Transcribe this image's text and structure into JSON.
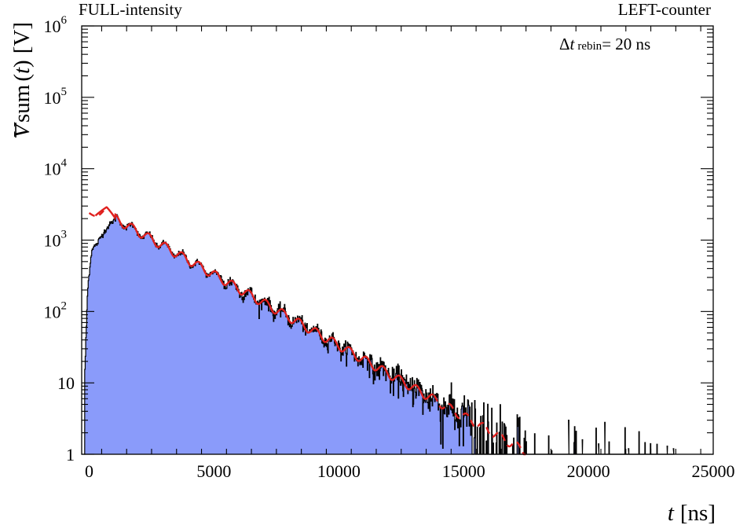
{
  "header": {
    "left_label": "FULL-intensity",
    "right_label": "LEFT-counter"
  },
  "annotation": {
    "prefix": "Δ",
    "var": "t",
    "sub": "rebin",
    "suffix": "= 20 ns"
  },
  "axes": {
    "x_title_var": "t",
    "x_title_unit": "[ns]",
    "y_title_var": "V",
    "y_title_mid": "sum",
    "y_title_paren_var": "t",
    "y_title_unit": "[V]"
  },
  "colors": {
    "fill": "#8a9bfa",
    "data_line": "#000000",
    "fit_line": "#e0201e",
    "frame": "#000000"
  },
  "chart_data": {
    "type": "area",
    "title": "",
    "xlabel": "t [ns]",
    "ylabel": "V̅sum (t) [V]",
    "xlim": [
      -300,
      25000
    ],
    "ylim": [
      1,
      1000000
    ],
    "yscale": "log",
    "grid": false,
    "legend": "none",
    "x_ticks": [
      0,
      5000,
      10000,
      15000,
      20000,
      25000
    ],
    "x_tick_labels": [
      "0",
      "5000",
      "10000",
      "15000",
      "20000",
      "25000"
    ],
    "y_ticks": [
      1,
      10,
      100,
      1000,
      10000,
      100000,
      1000000
    ],
    "y_tick_labels": [
      {
        "base": "1",
        "exp": ""
      },
      {
        "base": "10",
        "exp": ""
      },
      {
        "base": "10",
        "exp": "2"
      },
      {
        "base": "10",
        "exp": "3"
      },
      {
        "base": "10",
        "exp": "4"
      },
      {
        "base": "10",
        "exp": "5"
      },
      {
        "base": "10",
        "exp": "6"
      }
    ],
    "series": [
      {
        "role": "data histogram (filled, black outline)",
        "bin_width": 20,
        "decay_lifetime_ns": 2190,
        "peak": {
          "x": 1050,
          "y": 2000
        },
        "oscillation_period_ns": 670,
        "last_nonzero_x": 23400,
        "points": [
          [
            -200,
            1
          ],
          [
            -100,
            40
          ],
          [
            -50,
            200
          ],
          [
            0,
            300
          ],
          [
            100,
            750
          ],
          [
            300,
            900
          ],
          [
            600,
            1100
          ],
          [
            1050,
            2000
          ],
          [
            2000,
            1200
          ],
          [
            3000,
            850
          ],
          [
            4000,
            550
          ],
          [
            5000,
            330
          ],
          [
            6000,
            200
          ],
          [
            7000,
            125
          ],
          [
            8000,
            77
          ],
          [
            9000,
            48
          ],
          [
            10000,
            30
          ],
          [
            11000,
            18
          ],
          [
            12000,
            11
          ],
          [
            13000,
            7
          ],
          [
            14000,
            4.2
          ],
          [
            15000,
            2.6
          ],
          [
            16000,
            1.6
          ],
          [
            17000,
            1.0
          ],
          [
            18000,
            1.0
          ],
          [
            19500,
            1.0
          ],
          [
            21500,
            1.0
          ],
          [
            23400,
            1.0
          ]
        ]
      },
      {
        "role": "fit curve (red)",
        "start_x": 250,
        "start_y": 2200,
        "dashed_beyond_x": 13800,
        "end_x": 17500,
        "points": [
          [
            250,
            2200
          ],
          [
            700,
            2900
          ],
          [
            1000,
            1900
          ],
          [
            2000,
            1200
          ],
          [
            3000,
            850
          ],
          [
            4000,
            550
          ],
          [
            5000,
            330
          ],
          [
            6000,
            200
          ],
          [
            7000,
            125
          ],
          [
            8000,
            77
          ],
          [
            9000,
            48
          ],
          [
            10000,
            30
          ],
          [
            11000,
            18
          ],
          [
            12000,
            11
          ],
          [
            13000,
            7
          ],
          [
            14000,
            4.2
          ],
          [
            15000,
            2.6
          ],
          [
            16000,
            1.6
          ],
          [
            17000,
            1.0
          ]
        ]
      }
    ]
  }
}
